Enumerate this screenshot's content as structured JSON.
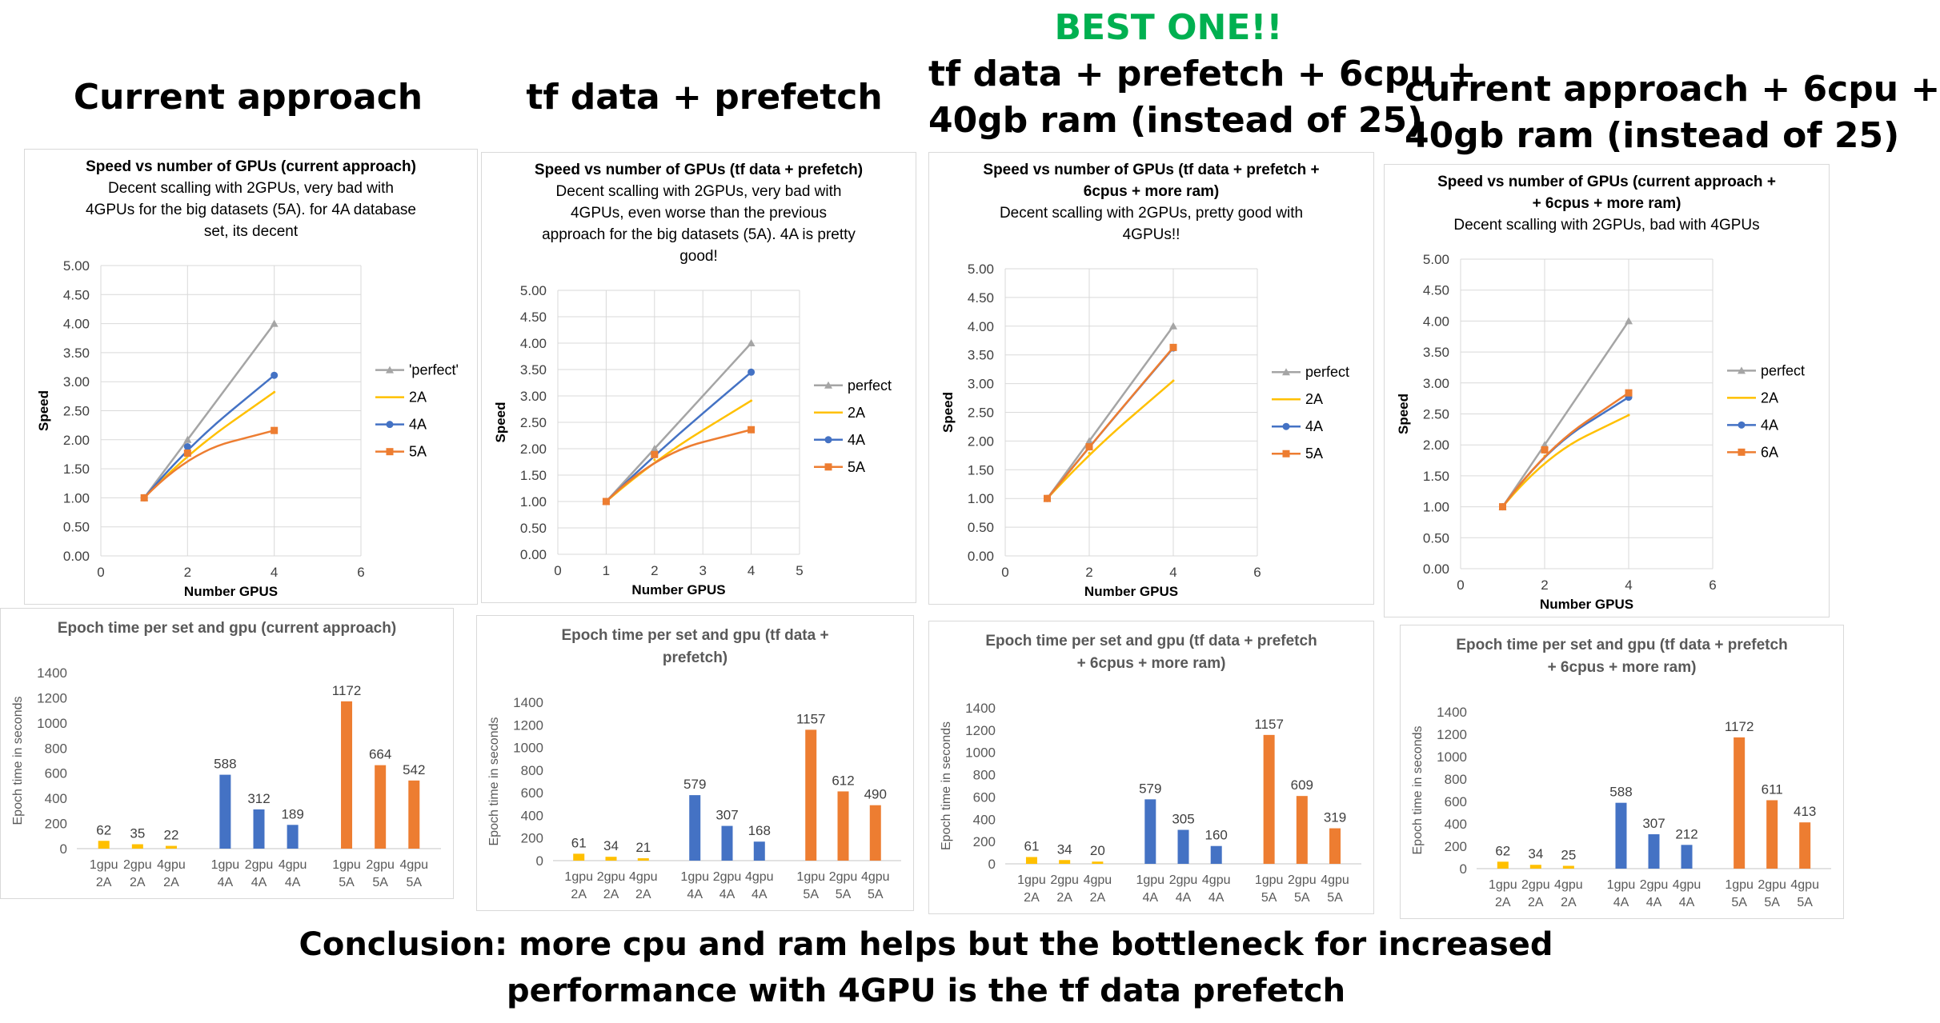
{
  "headings": {
    "h1": "Current approach",
    "h2": "tf data + prefetch",
    "h3_best": "BEST ONE!!",
    "h3_line1": "tf data + prefetch + 6cpu +",
    "h3_line2": "40gb ram (instead of 25)",
    "h4_line1": "current approach + 6cpu +",
    "h4_line2": "40gb ram (instead of 25)"
  },
  "conclusion": {
    "line1": "Conclusion: more cpu and ram helps but the bottleneck for increased",
    "line2": "performance with 4GPU is the tf data prefetch"
  },
  "colors": {
    "perfect": "#a5a5a5",
    "2A": "#ffc000",
    "4A": "#4472c4",
    "5A": "#ed7d31",
    "6A": "#ed7d31",
    "green": "#00b050"
  },
  "chart_data": [
    {
      "type": "line",
      "title": [
        "Speed vs number of GPUs (current approach)"
      ],
      "subtitle": [
        "Decent scalling with 2GPUs, very bad with",
        "4GPUs for the big datasets (5A). for 4A database",
        "set, its decent"
      ],
      "xlabel": "Number GPUS",
      "ylabel": "Speed",
      "xlim": [
        0,
        6
      ],
      "xticks": [
        "0",
        "2",
        "4",
        "6"
      ],
      "ylim": [
        0,
        5
      ],
      "yticks": [
        "0.00",
        "0.50",
        "1.00",
        "1.50",
        "2.00",
        "2.50",
        "3.00",
        "3.50",
        "4.00",
        "4.50",
        "5.00"
      ],
      "grid": true,
      "legend": "right",
      "series": [
        {
          "name": "'perfect'",
          "color": "#a5a5a5",
          "marker": "triangle",
          "x": [
            1,
            2,
            4
          ],
          "y": [
            1.0,
            2.0,
            4.0
          ]
        },
        {
          "name": "2A",
          "color": "#ffc000",
          "marker": "none",
          "x": [
            1,
            2,
            4
          ],
          "y": [
            1.0,
            1.77,
            2.82
          ]
        },
        {
          "name": "4A",
          "color": "#4472c4",
          "marker": "circle",
          "x": [
            1,
            2,
            4
          ],
          "y": [
            1.0,
            1.88,
            3.11
          ]
        },
        {
          "name": "5A",
          "color": "#ed7d31",
          "marker": "square",
          "x": [
            1,
            2,
            4
          ],
          "y": [
            1.0,
            1.77,
            2.16
          ]
        }
      ]
    },
    {
      "type": "line",
      "title": [
        "Speed vs number of GPUs (tf data + prefetch)"
      ],
      "subtitle": [
        "Decent scalling with 2GPUs, very bad with",
        "4GPUs, even worse than the previous",
        "approach for the big datasets (5A). 4A is pretty",
        "good!"
      ],
      "xlabel": "Number GPUS",
      "ylabel": "Speed",
      "xlim": [
        0,
        5
      ],
      "xticks": [
        "0",
        "1",
        "2",
        "3",
        "4",
        "5"
      ],
      "ylim": [
        0,
        5
      ],
      "yticks": [
        "0.00",
        "0.50",
        "1.00",
        "1.50",
        "2.00",
        "2.50",
        "3.00",
        "3.50",
        "4.00",
        "4.50",
        "5.00"
      ],
      "grid": true,
      "legend": "right",
      "series": [
        {
          "name": "perfect",
          "color": "#a5a5a5",
          "marker": "triangle",
          "x": [
            1,
            2,
            4
          ],
          "y": [
            1.0,
            2.0,
            4.0
          ]
        },
        {
          "name": "2A",
          "color": "#ffc000",
          "marker": "none",
          "x": [
            1,
            2,
            4
          ],
          "y": [
            1.0,
            1.79,
            2.91
          ]
        },
        {
          "name": "4A",
          "color": "#4472c4",
          "marker": "circle",
          "x": [
            1,
            2,
            4
          ],
          "y": [
            1.0,
            1.89,
            3.45
          ]
        },
        {
          "name": "5A",
          "color": "#ed7d31",
          "marker": "square",
          "x": [
            1,
            2,
            4
          ],
          "y": [
            1.0,
            1.89,
            2.36
          ]
        }
      ]
    },
    {
      "type": "line",
      "title": [
        "Speed vs number of GPUs (tf data + prefetch +",
        "6cpus + more ram)"
      ],
      "subtitle": [
        "Decent scalling with 2GPUs, pretty good with",
        "4GPUs!!"
      ],
      "xlabel": "Number GPUS",
      "ylabel": "Speed",
      "xlim": [
        0,
        6
      ],
      "xticks": [
        "0",
        "2",
        "4",
        "6"
      ],
      "ylim": [
        0,
        5
      ],
      "yticks": [
        "0.00",
        "0.50",
        "1.00",
        "1.50",
        "2.00",
        "2.50",
        "3.00",
        "3.50",
        "4.00",
        "4.50",
        "5.00"
      ],
      "grid": true,
      "legend": "right",
      "series": [
        {
          "name": "perfect",
          "color": "#a5a5a5",
          "marker": "triangle",
          "x": [
            1,
            2,
            4
          ],
          "y": [
            1.0,
            2.0,
            4.0
          ]
        },
        {
          "name": "2A",
          "color": "#ffc000",
          "marker": "none",
          "x": [
            1,
            2,
            4
          ],
          "y": [
            1.0,
            1.79,
            3.05
          ]
        },
        {
          "name": "4A",
          "color": "#4472c4",
          "marker": "circle",
          "x": [
            1,
            2,
            4
          ],
          "y": [
            1.0,
            1.9,
            3.62
          ]
        },
        {
          "name": "5A",
          "color": "#ed7d31",
          "marker": "square",
          "x": [
            1,
            2,
            4
          ],
          "y": [
            1.0,
            1.9,
            3.63
          ]
        }
      ]
    },
    {
      "type": "line",
      "title": [
        "Speed vs number of GPUs (current approach +",
        "+ 6cpus + more ram)"
      ],
      "subtitle": [
        "Decent scalling with 2GPUs, bad with 4GPUs"
      ],
      "xlabel": "Number GPUS",
      "ylabel": "Speed",
      "xlim": [
        0,
        6
      ],
      "xticks": [
        "0",
        "2",
        "4",
        "6"
      ],
      "ylim": [
        0,
        5
      ],
      "yticks": [
        "0.00",
        "0.50",
        "1.00",
        "1.50",
        "2.00",
        "2.50",
        "3.00",
        "3.50",
        "4.00",
        "4.50",
        "5.00"
      ],
      "grid": true,
      "legend": "right",
      "series": [
        {
          "name": "perfect",
          "color": "#a5a5a5",
          "marker": "triangle",
          "x": [
            1,
            2,
            4
          ],
          "y": [
            1.0,
            2.0,
            4.0
          ]
        },
        {
          "name": "2A",
          "color": "#ffc000",
          "marker": "none",
          "x": [
            1,
            2,
            4
          ],
          "y": [
            1.0,
            1.82,
            2.48
          ]
        },
        {
          "name": "4A",
          "color": "#4472c4",
          "marker": "circle",
          "x": [
            1,
            2,
            4
          ],
          "y": [
            1.0,
            1.92,
            2.77
          ]
        },
        {
          "name": "6A",
          "color": "#ed7d31",
          "marker": "square",
          "x": [
            1,
            2,
            4
          ],
          "y": [
            1.0,
            1.92,
            2.84
          ]
        }
      ]
    },
    {
      "type": "bar",
      "title": [
        "Epoch time per set and gpu (current approach)"
      ],
      "ylabel": "Epoch time in seconds",
      "ylim": [
        0,
        1400
      ],
      "yticks": [
        "0",
        "200",
        "400",
        "600",
        "800",
        "1000",
        "1200",
        "1400"
      ],
      "grid": false,
      "groups": [
        {
          "color": "#ffc000",
          "bars": [
            {
              "line1": "1gpu",
              "line2": "2A",
              "value": 62
            },
            {
              "line1": "2gpu",
              "line2": "2A",
              "value": 35
            },
            {
              "line1": "4gpu",
              "line2": "2A",
              "value": 22
            }
          ]
        },
        {
          "color": "#4472c4",
          "bars": [
            {
              "line1": "1gpu",
              "line2": "4A",
              "value": 588
            },
            {
              "line1": "2gpu",
              "line2": "4A",
              "value": 312
            },
            {
              "line1": "4gpu",
              "line2": "4A",
              "value": 189
            }
          ]
        },
        {
          "color": "#ed7d31",
          "bars": [
            {
              "line1": "1gpu",
              "line2": "5A",
              "value": 1172
            },
            {
              "line1": "2gpu",
              "line2": "5A",
              "value": 664
            },
            {
              "line1": "4gpu",
              "line2": "5A",
              "value": 542
            }
          ]
        }
      ]
    },
    {
      "type": "bar",
      "title": [
        "Epoch time per set and gpu (tf data +",
        "prefetch)"
      ],
      "ylabel": "Epoch time in seconds",
      "ylim": [
        0,
        1400
      ],
      "yticks": [
        "0",
        "200",
        "400",
        "600",
        "800",
        "1000",
        "1200",
        "1400"
      ],
      "grid": false,
      "groups": [
        {
          "color": "#ffc000",
          "bars": [
            {
              "line1": "1gpu",
              "line2": "2A",
              "value": 61
            },
            {
              "line1": "2gpu",
              "line2": "2A",
              "value": 34
            },
            {
              "line1": "4gpu",
              "line2": "2A",
              "value": 21
            }
          ]
        },
        {
          "color": "#4472c4",
          "bars": [
            {
              "line1": "1gpu",
              "line2": "4A",
              "value": 579
            },
            {
              "line1": "2gpu",
              "line2": "4A",
              "value": 307
            },
            {
              "line1": "4gpu",
              "line2": "4A",
              "value": 168
            }
          ]
        },
        {
          "color": "#ed7d31",
          "bars": [
            {
              "line1": "1gpu",
              "line2": "5A",
              "value": 1157
            },
            {
              "line1": "2gpu",
              "line2": "5A",
              "value": 612
            },
            {
              "line1": "4gpu",
              "line2": "5A",
              "value": 490
            }
          ]
        }
      ]
    },
    {
      "type": "bar",
      "title": [
        "Epoch time per set and gpu (tf data + prefetch",
        "+ 6cpus + more ram)"
      ],
      "ylabel": "Epoch time in seconds",
      "ylim": [
        0,
        1400
      ],
      "yticks": [
        "0",
        "200",
        "400",
        "600",
        "800",
        "1000",
        "1200",
        "1400"
      ],
      "grid": false,
      "groups": [
        {
          "color": "#ffc000",
          "bars": [
            {
              "line1": "1gpu",
              "line2": "2A",
              "value": 61
            },
            {
              "line1": "2gpu",
              "line2": "2A",
              "value": 34
            },
            {
              "line1": "4gpu",
              "line2": "2A",
              "value": 20
            }
          ]
        },
        {
          "color": "#4472c4",
          "bars": [
            {
              "line1": "1gpu",
              "line2": "4A",
              "value": 579
            },
            {
              "line1": "2gpu",
              "line2": "4A",
              "value": 305
            },
            {
              "line1": "4gpu",
              "line2": "4A",
              "value": 160
            }
          ]
        },
        {
          "color": "#ed7d31",
          "bars": [
            {
              "line1": "1gpu",
              "line2": "5A",
              "value": 1157
            },
            {
              "line1": "2gpu",
              "line2": "5A",
              "value": 609
            },
            {
              "line1": "4gpu",
              "line2": "5A",
              "value": 319
            }
          ]
        }
      ]
    },
    {
      "type": "bar",
      "title": [
        "Epoch time per set and gpu (tf data + prefetch",
        "+ 6cpus + more ram)"
      ],
      "ylabel": "Epoch time in seconds",
      "ylim": [
        0,
        1400
      ],
      "yticks": [
        "0",
        "200",
        "400",
        "600",
        "800",
        "1000",
        "1200",
        "1400"
      ],
      "grid": false,
      "groups": [
        {
          "color": "#ffc000",
          "bars": [
            {
              "line1": "1gpu",
              "line2": "2A",
              "value": 62
            },
            {
              "line1": "2gpu",
              "line2": "2A",
              "value": 34
            },
            {
              "line1": "4gpu",
              "line2": "2A",
              "value": 25
            }
          ]
        },
        {
          "color": "#4472c4",
          "bars": [
            {
              "line1": "1gpu",
              "line2": "4A",
              "value": 588
            },
            {
              "line1": "2gpu",
              "line2": "4A",
              "value": 307
            },
            {
              "line1": "4gpu",
              "line2": "4A",
              "value": 212
            }
          ]
        },
        {
          "color": "#ed7d31",
          "bars": [
            {
              "line1": "1gpu",
              "line2": "5A",
              "value": 1172
            },
            {
              "line1": "2gpu",
              "line2": "5A",
              "value": 611
            },
            {
              "line1": "4gpu",
              "line2": "5A",
              "value": 413
            }
          ]
        }
      ]
    }
  ]
}
